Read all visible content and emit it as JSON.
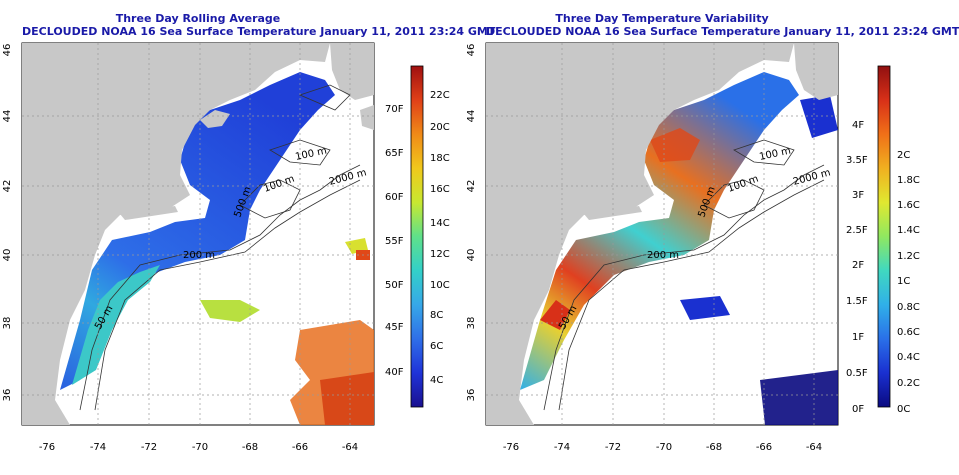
{
  "panels": [
    {
      "title": "Three Day Rolling Average",
      "subtitle": "DECLOUDED NOAA 16 Sea Surface Temperature January 11, 2011 23:24 GMT",
      "colorbar": {
        "colors": [
          "#1a1090",
          "#1f33d8",
          "#2f6fe8",
          "#37a8e8",
          "#33d0c8",
          "#5fe08a",
          "#c8e830",
          "#f0c81c",
          "#f08a18",
          "#e04018",
          "#a01010"
        ],
        "celsius_ticks": [
          "4C",
          "6C",
          "8C",
          "10C",
          "12C",
          "14C",
          "16C",
          "18C",
          "20C",
          "22C"
        ],
        "fahrenheit_ticks": [
          "40F",
          "45F",
          "50F",
          "55F",
          "60F",
          "65F",
          "70F"
        ]
      }
    },
    {
      "title": "Three Day Temperature Variability",
      "subtitle": "DECLOUDED NOAA 16 Sea Surface Temperature January 11, 2011 23:24 GMT",
      "colorbar": {
        "colors": [
          "#0a0a80",
          "#1a30d0",
          "#2a70e8",
          "#30b0e8",
          "#40d8c0",
          "#90e860",
          "#e0e830",
          "#f0b020",
          "#f07018",
          "#d83018",
          "#901010"
        ],
        "celsius_ticks": [
          "0C",
          "0.2C",
          "0.4C",
          "0.6C",
          "0.8C",
          "1C",
          "1.2C",
          "1.4C",
          "1.6C",
          "1.8C",
          "2C"
        ],
        "fahrenheit_ticks": [
          "0F",
          "0.5F",
          "1F",
          "1.5F",
          "2F",
          "2.5F",
          "3F",
          "3.5F",
          "4F"
        ]
      }
    }
  ],
  "axes": {
    "lon_ticks": [
      "-76",
      "-74",
      "-72",
      "-70",
      "-68",
      "-66",
      "-64"
    ],
    "lat_ticks": [
      "36",
      "38",
      "40",
      "42",
      "44",
      "46"
    ]
  },
  "contour_labels": [
    "100 m",
    "2000 m",
    "100 m",
    "200 m",
    "500 m",
    "50 m"
  ]
}
